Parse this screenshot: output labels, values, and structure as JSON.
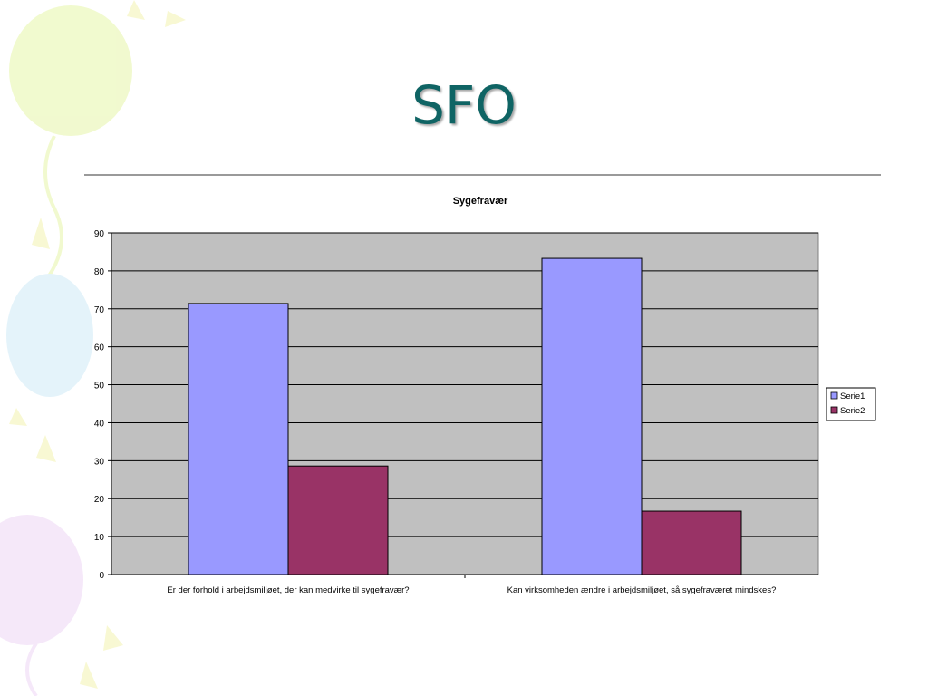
{
  "slide": {
    "title": "SFO"
  },
  "colors": {
    "title": "#0f6464",
    "plot_background": "#c0c0c0",
    "gridline": "#000000",
    "series1": "#9999ff",
    "series2": "#993366"
  },
  "chart_data": {
    "type": "bar",
    "title": "Sygefravær",
    "categories": [
      "Er der forhold i arbejdsmiljøet, der kan medvirke til sygefravær?",
      "Kan virksomheden ændre i arbejdsmiljøet, så sygefraværet mindskes?"
    ],
    "series": [
      {
        "name": "Serie1",
        "values": [
          71.4,
          83.3
        ]
      },
      {
        "name": "Serie2",
        "values": [
          28.6,
          16.7
        ]
      }
    ],
    "xlabel": "",
    "ylabel": "",
    "ylim": [
      0,
      90
    ],
    "yticks": [
      0,
      10,
      20,
      30,
      40,
      50,
      60,
      70,
      80,
      90
    ],
    "grid": true,
    "legend": "right"
  }
}
